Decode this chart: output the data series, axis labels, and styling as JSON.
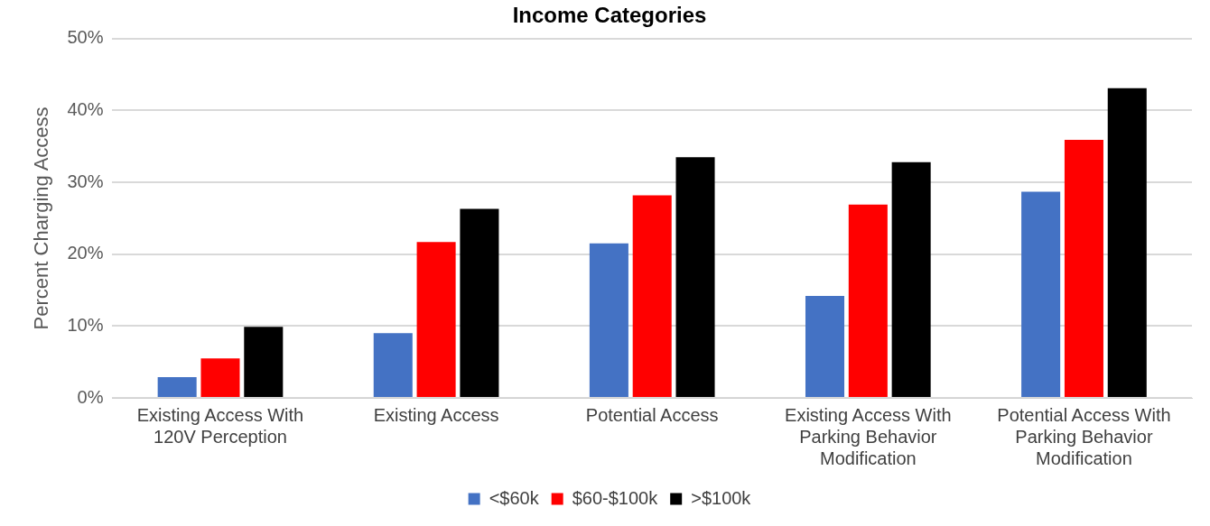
{
  "chart_data": {
    "type": "bar",
    "title": "Income Categories",
    "ylabel": "Percent Charging Access",
    "categories": [
      "Existing Access With 120V Perception",
      "Existing Access",
      "Potential Access",
      "Existing Access With Parking Behavior Modification",
      "Potential Access With Parking Behavior Modification"
    ],
    "series": [
      {
        "name": "<$60k",
        "color": "#4472c4",
        "values": [
          2.9,
          9.0,
          21.5,
          14.2,
          28.7
        ]
      },
      {
        "name": "$60-$100k",
        "color": "#ff0000",
        "values": [
          5.5,
          21.7,
          28.2,
          26.9,
          35.9
        ]
      },
      {
        "name": ">$100k",
        "color": "#000000",
        "values": [
          9.9,
          26.3,
          33.5,
          32.8,
          43.1
        ]
      }
    ],
    "ylim": [
      0,
      50
    ],
    "yticks": [
      {
        "value": 0,
        "label": "0%"
      },
      {
        "value": 10,
        "label": "10%"
      },
      {
        "value": 20,
        "label": "20%"
      },
      {
        "value": 30,
        "label": "30%"
      },
      {
        "value": 40,
        "label": "40%"
      },
      {
        "value": 50,
        "label": "50%"
      }
    ],
    "grid": "y",
    "legend": "bottom"
  }
}
